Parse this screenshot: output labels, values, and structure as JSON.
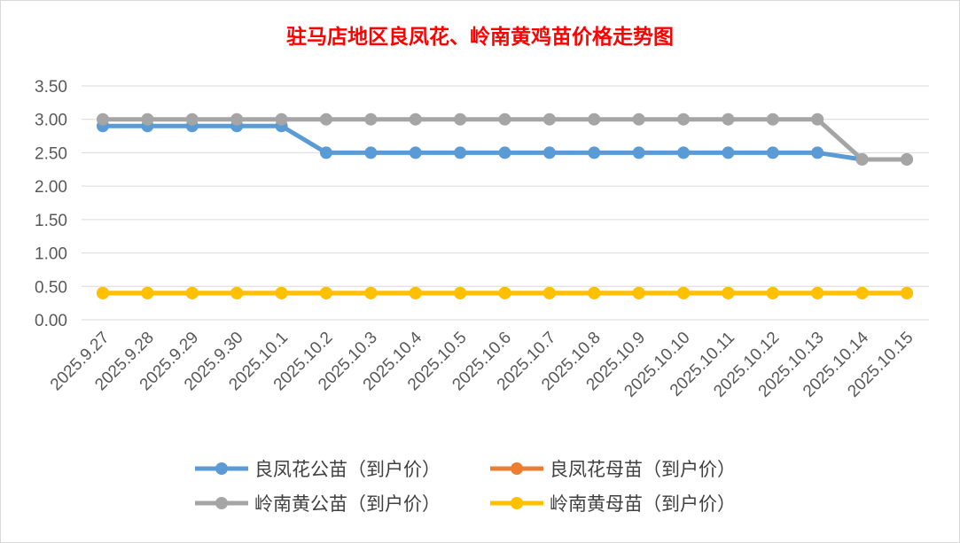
{
  "chart_data": {
    "type": "line",
    "title": "驻马店地区良凤花、岭南黄鸡苗价格走势图",
    "categories": [
      "2025.9.27",
      "2025.9.28",
      "2025.9.29",
      "2025.9.30",
      "2025.10.1",
      "2025.10.2",
      "2025.10.3",
      "2025.10.4",
      "2025.10.5",
      "2025.10.6",
      "2025.10.7",
      "2025.10.8",
      "2025.10.9",
      "2025.10.10",
      "2025.10.11",
      "2025.10.12",
      "2025.10.13",
      "2025.10.14",
      "2025.10.15"
    ],
    "yticks": [
      "0.00",
      "0.50",
      "1.00",
      "1.50",
      "2.00",
      "2.50",
      "3.00",
      "3.50"
    ],
    "ylim": [
      0,
      3.5
    ],
    "grid": true,
    "legend_position": "bottom",
    "series": [
      {
        "name": "良凤花公苗（到户价）",
        "color": "#5b9bd5",
        "values": [
          2.9,
          2.9,
          2.9,
          2.9,
          2.9,
          2.5,
          2.5,
          2.5,
          2.5,
          2.5,
          2.5,
          2.5,
          2.5,
          2.5,
          2.5,
          2.5,
          2.5,
          2.4,
          2.4
        ]
      },
      {
        "name": "良凤花母苗（到户价）",
        "color": "#ed7d31",
        "values": [
          0.4,
          0.4,
          0.4,
          0.4,
          0.4,
          0.4,
          0.4,
          0.4,
          0.4,
          0.4,
          0.4,
          0.4,
          0.4,
          0.4,
          0.4,
          0.4,
          0.4,
          0.4,
          0.4
        ]
      },
      {
        "name": "岭南黄公苗（到户价）",
        "color": "#a5a5a5",
        "values": [
          3.0,
          3.0,
          3.0,
          3.0,
          3.0,
          3.0,
          3.0,
          3.0,
          3.0,
          3.0,
          3.0,
          3.0,
          3.0,
          3.0,
          3.0,
          3.0,
          3.0,
          2.4,
          2.4
        ]
      },
      {
        "name": "岭南黄母苗（到户价）",
        "color": "#ffc000",
        "values": [
          0.4,
          0.4,
          0.4,
          0.4,
          0.4,
          0.4,
          0.4,
          0.4,
          0.4,
          0.4,
          0.4,
          0.4,
          0.4,
          0.4,
          0.4,
          0.4,
          0.4,
          0.4,
          0.4
        ]
      }
    ]
  }
}
